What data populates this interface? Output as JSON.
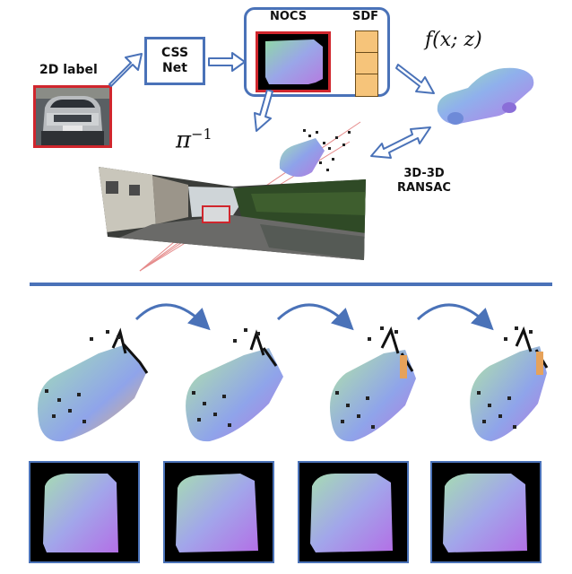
{
  "labels": {
    "label_2d": "2D label",
    "css_net_line1": "CSS",
    "css_net_line2": "Net",
    "nocs": "NOCS",
    "sdf": "SDF",
    "func": "f(x; z)",
    "pi_inv": "π",
    "pi_exp": "−1",
    "ransac_line1": "3D-3D",
    "ransac_line2": "RANSAC"
  },
  "colors": {
    "accent_blue": "#4a72b8",
    "crop_red": "#d0262d",
    "sdf_cell": "#f6c47a"
  },
  "icons": {
    "arrows": "hollow-double-arrow",
    "curved": "curved-blue-arrow"
  }
}
